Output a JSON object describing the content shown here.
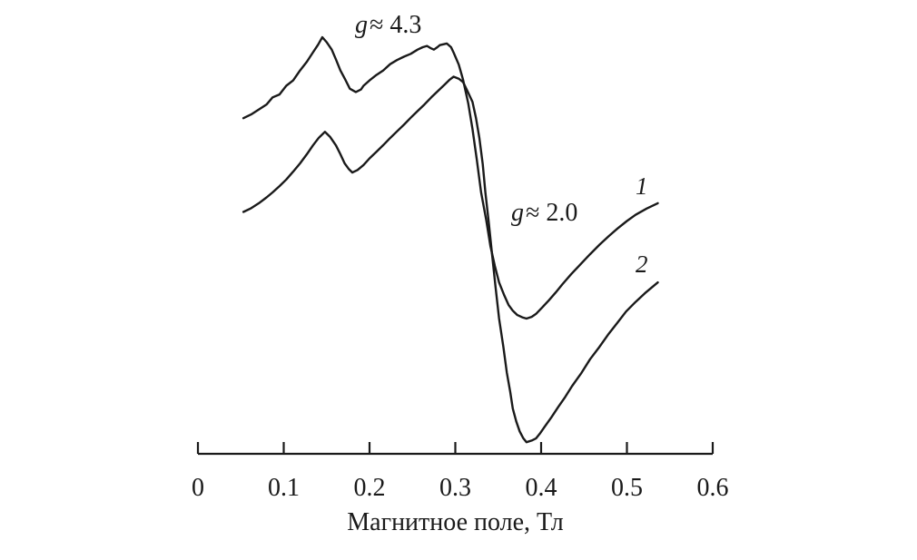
{
  "chart_data": {
    "type": "line",
    "title": "",
    "xlabel": "Магнитное поле, Тл",
    "ylabel": "",
    "xlim": [
      0,
      0.6
    ],
    "y_unit": "arbitrary",
    "grid": false,
    "y_axis_visible": false,
    "x_ticks": [
      0,
      0.1,
      0.2,
      0.3,
      0.4,
      0.5,
      0.6
    ],
    "x_tick_labels": [
      "0",
      "0.1",
      "0.2",
      "0.3",
      "0.4",
      "0.5",
      "0.6"
    ],
    "annotations": [
      {
        "symbol": "g",
        "text": "≈ 4.3",
        "near_x": 0.15
      },
      {
        "symbol": "g",
        "text": "≈ 2.0",
        "near_x": 0.33
      }
    ],
    "series": [
      {
        "name": "1",
        "points": [
          [
            0.053,
            80.9
          ],
          [
            0.062,
            81.8
          ],
          [
            0.071,
            83.0
          ],
          [
            0.08,
            84.2
          ],
          [
            0.087,
            85.9
          ],
          [
            0.095,
            86.6
          ],
          [
            0.103,
            88.7
          ],
          [
            0.111,
            90.0
          ],
          [
            0.119,
            92.4
          ],
          [
            0.127,
            94.5
          ],
          [
            0.134,
            96.7
          ],
          [
            0.14,
            98.6
          ],
          [
            0.145,
            100.4
          ],
          [
            0.15,
            99.2
          ],
          [
            0.156,
            97.4
          ],
          [
            0.161,
            95.0
          ],
          [
            0.166,
            92.4
          ],
          [
            0.172,
            90.1
          ],
          [
            0.177,
            88.0
          ],
          [
            0.184,
            87.2
          ],
          [
            0.19,
            87.8
          ],
          [
            0.193,
            88.7
          ],
          [
            0.2,
            90.0
          ],
          [
            0.208,
            91.3
          ],
          [
            0.216,
            92.4
          ],
          [
            0.224,
            93.9
          ],
          [
            0.232,
            94.9
          ],
          [
            0.24,
            95.7
          ],
          [
            0.248,
            96.4
          ],
          [
            0.256,
            97.4
          ],
          [
            0.262,
            98.0
          ],
          [
            0.267,
            98.3
          ],
          [
            0.271,
            97.8
          ],
          [
            0.275,
            97.4
          ],
          [
            0.279,
            98.0
          ],
          [
            0.282,
            98.5
          ],
          [
            0.29,
            98.9
          ],
          [
            0.295,
            98.0
          ],
          [
            0.298,
            96.7
          ],
          [
            0.304,
            93.8
          ],
          [
            0.309,
            90.2
          ],
          [
            0.315,
            84.5
          ],
          [
            0.32,
            78.3
          ],
          [
            0.325,
            71.0
          ],
          [
            0.33,
            63.0
          ],
          [
            0.336,
            56.4
          ],
          [
            0.341,
            50.0
          ],
          [
            0.346,
            45.3
          ],
          [
            0.351,
            41.3
          ],
          [
            0.357,
            38.2
          ],
          [
            0.362,
            35.9
          ],
          [
            0.367,
            34.5
          ],
          [
            0.372,
            33.5
          ],
          [
            0.378,
            32.9
          ],
          [
            0.383,
            32.6
          ],
          [
            0.389,
            33.0
          ],
          [
            0.394,
            33.7
          ],
          [
            0.401,
            35.2
          ],
          [
            0.409,
            37.0
          ],
          [
            0.417,
            38.9
          ],
          [
            0.425,
            40.9
          ],
          [
            0.435,
            43.3
          ],
          [
            0.446,
            45.7
          ],
          [
            0.457,
            48.1
          ],
          [
            0.468,
            50.4
          ],
          [
            0.479,
            52.5
          ],
          [
            0.489,
            54.3
          ],
          [
            0.5,
            56.1
          ],
          [
            0.51,
            57.6
          ],
          [
            0.523,
            59.1
          ],
          [
            0.536,
            60.4
          ]
        ]
      },
      {
        "name": "2",
        "points": [
          [
            0.053,
            58.3
          ],
          [
            0.062,
            59.2
          ],
          [
            0.071,
            60.4
          ],
          [
            0.08,
            61.8
          ],
          [
            0.087,
            63.0
          ],
          [
            0.095,
            64.5
          ],
          [
            0.103,
            66.1
          ],
          [
            0.111,
            68.0
          ],
          [
            0.119,
            70.0
          ],
          [
            0.127,
            72.2
          ],
          [
            0.134,
            74.3
          ],
          [
            0.141,
            76.2
          ],
          [
            0.148,
            77.6
          ],
          [
            0.154,
            76.4
          ],
          [
            0.161,
            74.3
          ],
          [
            0.166,
            72.2
          ],
          [
            0.171,
            70.0
          ],
          [
            0.176,
            68.6
          ],
          [
            0.18,
            67.8
          ],
          [
            0.186,
            68.4
          ],
          [
            0.193,
            69.6
          ],
          [
            0.2,
            71.2
          ],
          [
            0.208,
            72.8
          ],
          [
            0.216,
            74.4
          ],
          [
            0.224,
            76.1
          ],
          [
            0.232,
            77.7
          ],
          [
            0.24,
            79.3
          ],
          [
            0.248,
            81.0
          ],
          [
            0.256,
            82.6
          ],
          [
            0.264,
            84.2
          ],
          [
            0.272,
            85.9
          ],
          [
            0.28,
            87.5
          ],
          [
            0.288,
            89.1
          ],
          [
            0.293,
            90.1
          ],
          [
            0.298,
            90.9
          ],
          [
            0.304,
            90.4
          ],
          [
            0.309,
            89.6
          ],
          [
            0.314,
            87.5
          ],
          [
            0.32,
            84.8
          ],
          [
            0.324,
            81.0
          ],
          [
            0.328,
            76.1
          ],
          [
            0.332,
            69.8
          ],
          [
            0.335,
            63.0
          ],
          [
            0.339,
            55.6
          ],
          [
            0.343,
            47.8
          ],
          [
            0.347,
            40.0
          ],
          [
            0.351,
            32.6
          ],
          [
            0.356,
            25.8
          ],
          [
            0.36,
            19.6
          ],
          [
            0.364,
            14.9
          ],
          [
            0.367,
            10.9
          ],
          [
            0.371,
            7.8
          ],
          [
            0.375,
            5.4
          ],
          [
            0.379,
            3.8
          ],
          [
            0.383,
            2.8
          ],
          [
            0.389,
            3.2
          ],
          [
            0.394,
            3.7
          ],
          [
            0.399,
            5.0
          ],
          [
            0.404,
            6.5
          ],
          [
            0.412,
            8.8
          ],
          [
            0.42,
            11.3
          ],
          [
            0.428,
            13.7
          ],
          [
            0.436,
            16.3
          ],
          [
            0.447,
            19.5
          ],
          [
            0.457,
            22.8
          ],
          [
            0.468,
            25.8
          ],
          [
            0.478,
            28.7
          ],
          [
            0.489,
            31.6
          ],
          [
            0.499,
            34.3
          ],
          [
            0.51,
            36.6
          ],
          [
            0.521,
            38.7
          ],
          [
            0.529,
            40.1
          ],
          [
            0.536,
            41.3
          ]
        ]
      }
    ],
    "style": {
      "curve_color": "#1a1a1a",
      "axis_color": "#1a1a1a"
    }
  }
}
